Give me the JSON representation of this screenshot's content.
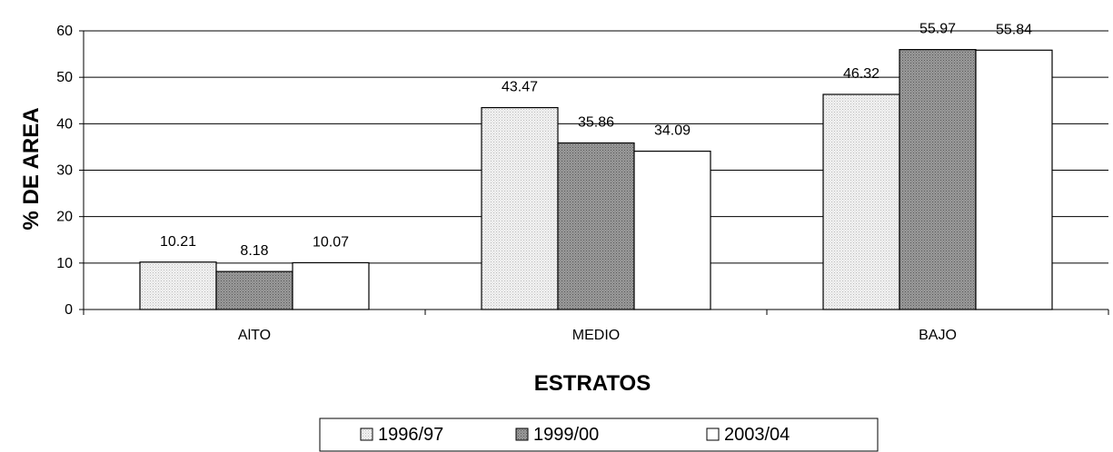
{
  "chart_data": {
    "type": "bar",
    "categories": [
      "AlTO",
      "MEDIO",
      "BAJO"
    ],
    "series": [
      {
        "name": "1996/97",
        "values": [
          10.21,
          43.47,
          46.32
        ],
        "fill": "dotted-light-gray"
      },
      {
        "name": "1999/00",
        "values": [
          8.18,
          35.86,
          55.97
        ],
        "fill": "dotted-dark-gray"
      },
      {
        "name": "2003/04",
        "values": [
          10.07,
          34.09,
          55.84
        ],
        "fill": "#ffffff"
      }
    ],
    "value_labels": [
      [
        "10.21",
        "43.47",
        "46.32"
      ],
      [
        "8.18",
        "35.86",
        "55.97"
      ],
      [
        "10.07",
        "34.09",
        "55.84"
      ]
    ],
    "title": "",
    "xlabel": "ESTRATOS",
    "ylabel": "% DE AREA",
    "ylim": [
      0,
      60
    ],
    "yticks": [
      "0",
      "10",
      "20",
      "30",
      "40",
      "50",
      "60"
    ],
    "grid": true,
    "legend": "bottom",
    "colors": {
      "light": "#e6e6e6",
      "dark": "#8c8c8c",
      "white": "#ffffff",
      "outline": "#000000"
    }
  }
}
